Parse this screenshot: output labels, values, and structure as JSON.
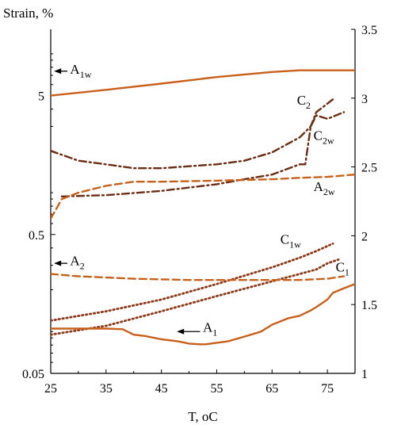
{
  "chart_data": {
    "type": "line",
    "ylabel": "Strain, %",
    "xlabel": "T, oC",
    "xlim": [
      25,
      80
    ],
    "ylim": [
      0.05,
      15
    ],
    "y_scale": "log",
    "y2lim": [
      1,
      3.5
    ],
    "x_ticks": [
      "25",
      "35",
      "45",
      "55",
      "65",
      "75"
    ],
    "y_ticks": [
      "0.05",
      "0.5",
      "5"
    ],
    "y2_ticks": [
      "1",
      "1.5",
      "2",
      "2.5",
      "3",
      "3.5"
    ],
    "grid": false,
    "colors": {
      "orange": "#c8601c",
      "dark": "#6b2d14",
      "brown": "#8b3a1a"
    },
    "series": [
      {
        "name": "A1w",
        "axis": "left",
        "style": "solid",
        "color": "#c8601c",
        "x": [
          25,
          35,
          45,
          55,
          65,
          70,
          80
        ],
        "y": [
          5.0,
          5.5,
          6.1,
          6.8,
          7.4,
          7.6,
          7.6
        ]
      },
      {
        "name": "C2",
        "axis": "left",
        "style": "dash-dot",
        "color": "#6b2d14",
        "x": [
          25,
          30,
          35,
          40,
          45,
          50,
          55,
          60,
          65,
          70,
          72,
          73,
          76
        ],
        "y": [
          2.0,
          1.7,
          1.6,
          1.5,
          1.5,
          1.55,
          1.6,
          1.7,
          1.95,
          2.5,
          3.0,
          3.8,
          4.7
        ]
      },
      {
        "name": "C2w",
        "axis": "left",
        "style": "dash-dot",
        "color": "#6b2d14",
        "x": [
          27,
          35,
          45,
          55,
          60,
          65,
          70,
          71,
          72,
          73,
          75,
          78
        ],
        "y": [
          0.94,
          0.96,
          1.03,
          1.15,
          1.25,
          1.35,
          1.6,
          1.6,
          3.0,
          3.6,
          3.4,
          3.8
        ]
      },
      {
        "name": "A2w",
        "axis": "left",
        "style": "dashed",
        "color": "#c8601c",
        "x": [
          25,
          27,
          30,
          35,
          40,
          45,
          55,
          65,
          70,
          75,
          80
        ],
        "y": [
          0.65,
          0.9,
          1.0,
          1.12,
          1.2,
          1.2,
          1.22,
          1.25,
          1.28,
          1.3,
          1.35
        ]
      },
      {
        "name": "C1w",
        "axis": "left",
        "style": "dotted",
        "color": "#8b3a1a",
        "x": [
          25,
          35,
          45,
          55,
          65,
          70,
          73,
          76
        ],
        "y": [
          0.12,
          0.14,
          0.17,
          0.22,
          0.29,
          0.34,
          0.38,
          0.43
        ]
      },
      {
        "name": "C1",
        "axis": "left",
        "style": "dotted",
        "color": "#8b3a1a",
        "x": [
          25,
          35,
          45,
          55,
          65,
          70,
          73,
          75,
          77
        ],
        "y": [
          0.095,
          0.11,
          0.14,
          0.18,
          0.23,
          0.26,
          0.28,
          0.31,
          0.33
        ]
      },
      {
        "name": "A2",
        "axis": "left",
        "style": "dashed",
        "color": "#c8601c",
        "x": [
          25,
          30,
          40,
          50,
          60,
          70,
          75,
          78
        ],
        "y": [
          0.26,
          0.25,
          0.24,
          0.235,
          0.235,
          0.235,
          0.24,
          0.25
        ]
      },
      {
        "name": "A1",
        "axis": "left",
        "style": "solid",
        "color": "#c8601c",
        "x": [
          25,
          30,
          35,
          38,
          40,
          42,
          45,
          48,
          50,
          52,
          53,
          55,
          57,
          60,
          63,
          65,
          68,
          70,
          72,
          73,
          75,
          76,
          78,
          80
        ],
        "y": [
          0.105,
          0.105,
          0.105,
          0.104,
          0.095,
          0.093,
          0.088,
          0.085,
          0.082,
          0.081,
          0.081,
          0.083,
          0.085,
          0.092,
          0.1,
          0.112,
          0.125,
          0.13,
          0.142,
          0.15,
          0.17,
          0.19,
          0.205,
          0.22
        ]
      }
    ],
    "annotations": [
      {
        "base": "A",
        "sub": "1w",
        "x": 28.5,
        "y": 7.2
      },
      {
        "base": "C",
        "sub": "2",
        "x": 69.5,
        "y": 4.3
      },
      {
        "base": "C",
        "sub": "2w",
        "x": 72.5,
        "y": 2.4
      },
      {
        "base": "A",
        "sub": "2w",
        "x": 72.5,
        "y": 1.03
      },
      {
        "base": "C",
        "sub": "1w",
        "x": 66.5,
        "y": 0.43
      },
      {
        "base": "C",
        "sub": "1",
        "x": 76.5,
        "y": 0.27
      },
      {
        "base": "A",
        "sub": "2",
        "x": 28.5,
        "y": 0.3
      },
      {
        "base": "A",
        "sub": "1",
        "x": 52.5,
        "y": 0.1
      }
    ],
    "arrows": [
      {
        "x1": 28,
        "x2": 25.6,
        "y": 7.5
      },
      {
        "x1": 28,
        "x2": 25.6,
        "y": 0.31
      },
      {
        "x1": 52,
        "x2": 47.8,
        "y": 0.1
      }
    ]
  }
}
